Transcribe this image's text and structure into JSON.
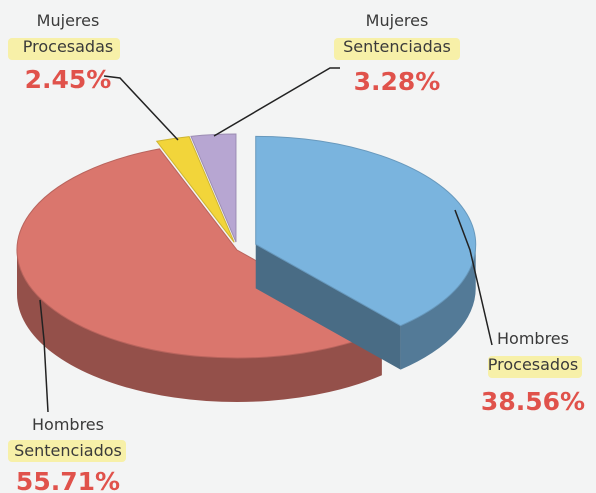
{
  "chart_data": {
    "type": "pie3d",
    "categories": [
      "Hombres Procesados",
      "Hombres Sentenciados",
      "Mujeres Procesadas",
      "Mujeres Sentenciadas"
    ],
    "values": [
      38.56,
      55.71,
      2.45,
      3.28
    ],
    "value_labels": [
      "38.56%",
      "55.71%",
      "2.45%",
      "3.28%"
    ],
    "colors": [
      "#7ab4de",
      "#da766d",
      "#f2d53a",
      "#b7a6d2"
    ]
  }
}
